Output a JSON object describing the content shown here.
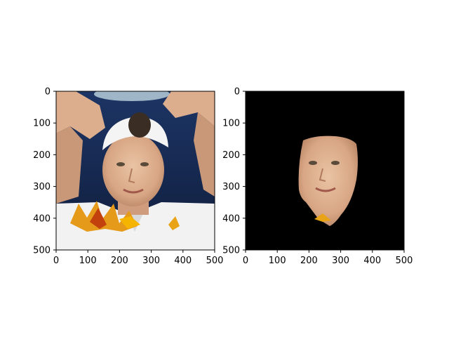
{
  "chart_data": [
    {
      "type": "image",
      "panel": "original",
      "xlim": [
        0,
        500
      ],
      "ylim": [
        500,
        0
      ],
      "xticks": [
        0,
        100,
        200,
        300,
        400,
        500
      ],
      "yticks": [
        0,
        100,
        200,
        300,
        400,
        500
      ],
      "xtick_labels": [
        "0",
        "100",
        "200",
        "300",
        "400",
        "500"
      ],
      "ytick_labels": [
        "0",
        "100",
        "200",
        "300",
        "400",
        "500"
      ],
      "background": "#1a2e55",
      "grid": false,
      "content": "photo of a young man wearing a white backwards cap, arms raised overhead, autumn leaves at bottom"
    },
    {
      "type": "image",
      "panel": "masked",
      "xlim": [
        0,
        500
      ],
      "ylim": [
        500,
        0
      ],
      "xticks": [
        0,
        100,
        200,
        300,
        400,
        500
      ],
      "yticks": [
        0,
        100,
        200,
        300,
        400,
        500
      ],
      "xtick_labels": [
        "0",
        "100",
        "200",
        "300",
        "400",
        "500"
      ],
      "ytick_labels": [
        "0",
        "100",
        "200",
        "300",
        "400",
        "500"
      ],
      "background": "#000000",
      "grid": false,
      "content": "segmented face region on black background"
    }
  ]
}
